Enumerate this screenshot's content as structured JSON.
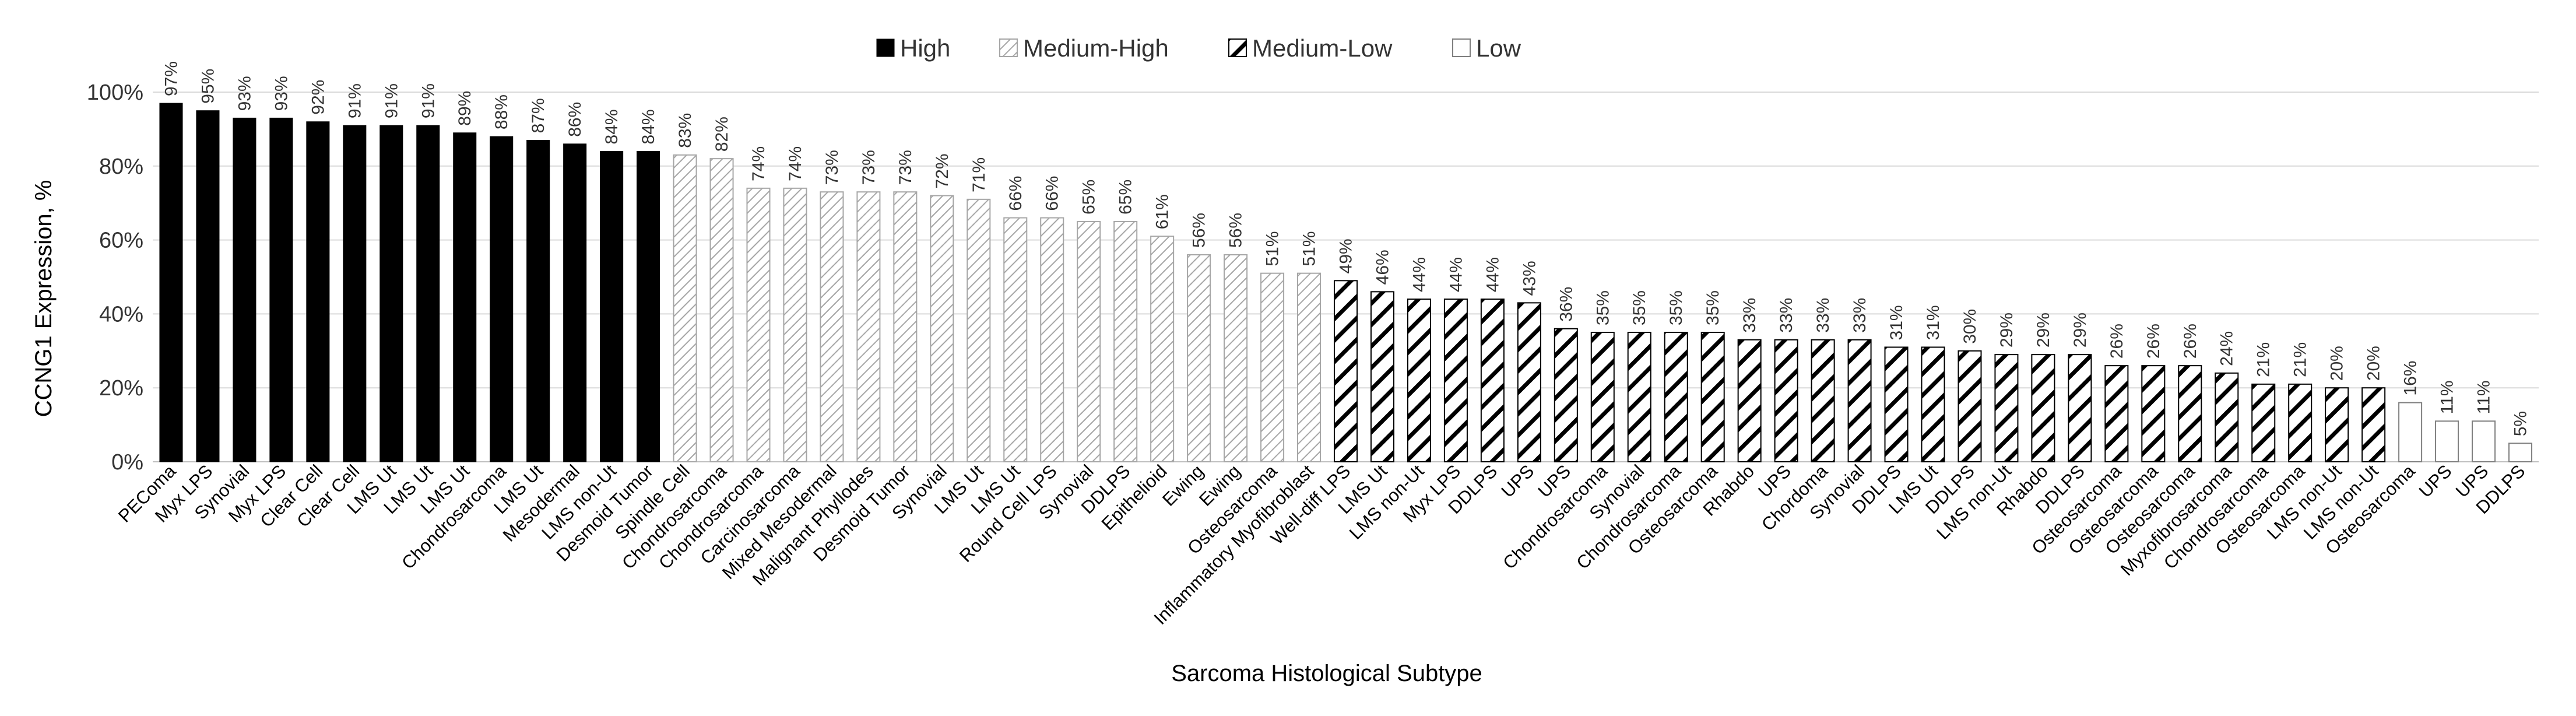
{
  "chart_data": {
    "type": "bar",
    "xlabel": "Sarcoma Histological Subtype",
    "ylabel": "CCNG1 Expression, %",
    "ylim": [
      0,
      100
    ],
    "yticks": [
      0,
      20,
      40,
      60,
      80,
      100
    ],
    "ytick_labels": [
      "0%",
      "20%",
      "40%",
      "60%",
      "80%",
      "100%"
    ],
    "grid": true,
    "legend_position": "top-center",
    "legend": [
      {
        "name": "High",
        "style": "solid",
        "color": "#000000"
      },
      {
        "name": "Medium-High",
        "style": "light-hatch",
        "color": "#a6a6a6"
      },
      {
        "name": "Medium-Low",
        "style": "dark-hatch",
        "color": "#000000"
      },
      {
        "name": "Low",
        "style": "outline",
        "color": "#7f7f7f"
      }
    ],
    "categories": [
      "PEComa",
      "Myx LPS",
      "Synovial",
      "Myx LPS",
      "Clear Cell",
      "Clear Cell",
      "LMS Ut",
      "LMS Ut",
      "LMS Ut",
      "Chondrosarcoma",
      "LMS Ut",
      "Mesodermal",
      "LMS non-Ut",
      "Desmoid Tumor",
      "Spindle Cell",
      "Chondrosarcoma",
      "Chondrosarcoma",
      "Carcinosarcoma",
      "Mixed Mesodermal",
      "Malignant Phyllodes",
      "Desmoid Tumor",
      "Synovial",
      "LMS Ut",
      "LMS Ut",
      "Round Cell LPS",
      "Synovial",
      "DDLPS",
      "Epithelioid",
      "Ewing",
      "Ewing",
      "Osteosarcoma",
      "Inflammatory Myofibroblast",
      "Well-diff LPS",
      "LMS Ut",
      "LMS non-Ut",
      "Myx LPS",
      "DDLPS",
      "UPS",
      "UPS",
      "Chondrosarcoma",
      "Synovial",
      "Chondrosarcoma",
      "Osteosarcoma",
      "Rhabdo",
      "UPS",
      "Chordoma",
      "Synovial",
      "DDLPS",
      "LMS Ut",
      "DDLPS",
      "LMS non-Ut",
      "Rhabdo",
      "DDLPS",
      "Osteosarcoma",
      "Osteosarcoma",
      "Osteosarcoma",
      "Myxofibrosarcoma",
      "Chondrosarcoma",
      "Osteosarcoma",
      "LMS non-Ut",
      "LMS non-Ut",
      "Osteosarcoma",
      "UPS",
      "UPS",
      "DDLPS"
    ],
    "values": [
      97,
      95,
      93,
      93,
      92,
      91,
      91,
      91,
      89,
      88,
      87,
      86,
      84,
      84,
      83,
      82,
      74,
      74,
      73,
      73,
      73,
      72,
      71,
      66,
      66,
      65,
      65,
      61,
      56,
      56,
      51,
      51,
      49,
      46,
      44,
      44,
      44,
      43,
      36,
      35,
      35,
      35,
      35,
      33,
      33,
      33,
      33,
      31,
      31,
      30,
      29,
      29,
      29,
      26,
      26,
      26,
      24,
      21,
      21,
      20,
      20,
      16,
      11,
      11,
      5
    ],
    "value_labels": [
      "97%",
      "95%",
      "93%",
      "93%",
      "92%",
      "91%",
      "91%",
      "91%",
      "89%",
      "88%",
      "87%",
      "86%",
      "84%",
      "84%",
      "83%",
      "82%",
      "74%",
      "74%",
      "73%",
      "73%",
      "73%",
      "72%",
      "71%",
      "66%",
      "66%",
      "65%",
      "65%",
      "61%",
      "56%",
      "56%",
      "51%",
      "51%",
      "49%",
      "46%",
      "44%",
      "44%",
      "44%",
      "43%",
      "36%",
      "35%",
      "35%",
      "35%",
      "35%",
      "33%",
      "33%",
      "33%",
      "33%",
      "31%",
      "31%",
      "30%",
      "29%",
      "29%",
      "29%",
      "26%",
      "26%",
      "26%",
      "24%",
      "21%",
      "21%",
      "20%",
      "20%",
      "16%",
      "11%",
      "11%",
      "5%"
    ],
    "groups": [
      "High",
      "High",
      "High",
      "High",
      "High",
      "High",
      "High",
      "High",
      "High",
      "High",
      "High",
      "High",
      "High",
      "High",
      "Medium-High",
      "Medium-High",
      "Medium-High",
      "Medium-High",
      "Medium-High",
      "Medium-High",
      "Medium-High",
      "Medium-High",
      "Medium-High",
      "Medium-High",
      "Medium-High",
      "Medium-High",
      "Medium-High",
      "Medium-High",
      "Medium-High",
      "Medium-High",
      "Medium-High",
      "Medium-High",
      "Medium-Low",
      "Medium-Low",
      "Medium-Low",
      "Medium-Low",
      "Medium-Low",
      "Medium-Low",
      "Medium-Low",
      "Medium-Low",
      "Medium-Low",
      "Medium-Low",
      "Medium-Low",
      "Medium-Low",
      "Medium-Low",
      "Medium-Low",
      "Medium-Low",
      "Medium-Low",
      "Medium-Low",
      "Medium-Low",
      "Medium-Low",
      "Medium-Low",
      "Medium-Low",
      "Medium-Low",
      "Medium-Low",
      "Medium-Low",
      "Medium-Low",
      "Medium-Low",
      "Medium-Low",
      "Medium-Low",
      "Medium-Low",
      "Low",
      "Low",
      "Low",
      "Low"
    ]
  }
}
